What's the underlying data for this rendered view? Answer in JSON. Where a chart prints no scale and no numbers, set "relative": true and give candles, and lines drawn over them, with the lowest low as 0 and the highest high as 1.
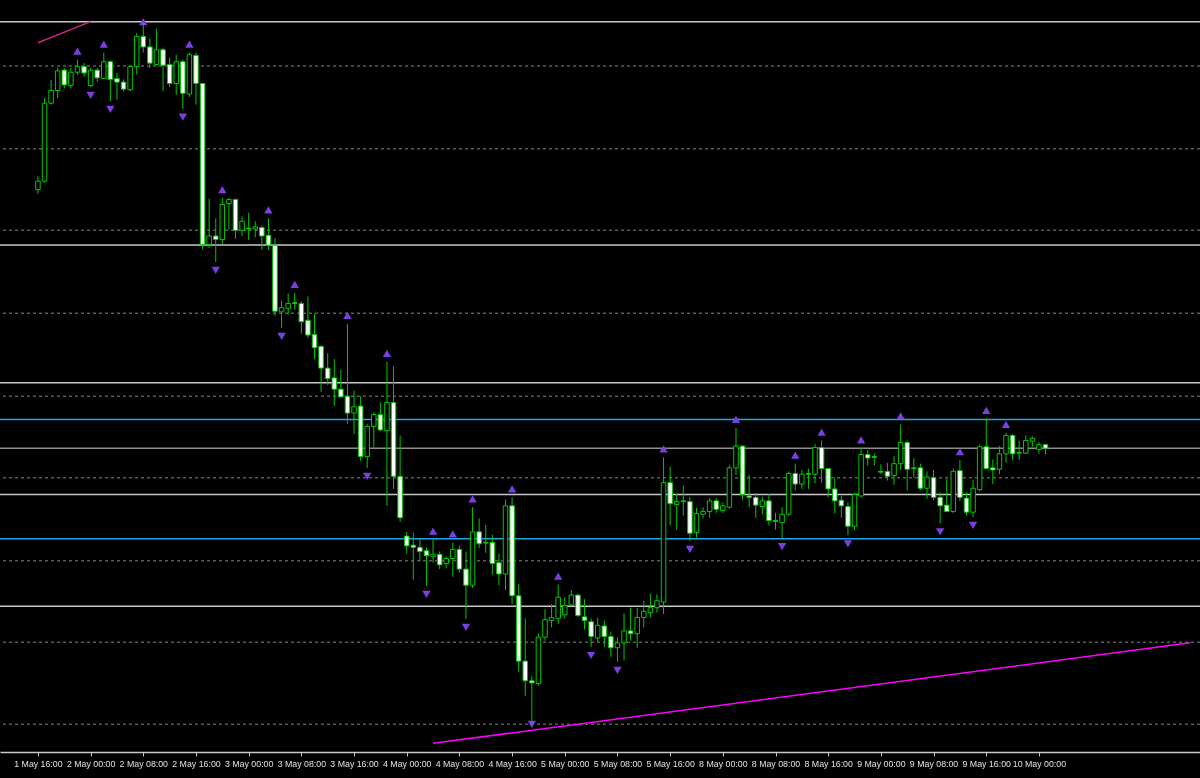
{
  "chart_data": {
    "type": "candlestick",
    "relative": true,
    "color": "#00c800",
    "categories": [
      "1 May 16:00",
      null,
      null,
      null,
      null,
      null,
      null,
      null,
      "2 May 00:00",
      null,
      null,
      null,
      null,
      null,
      null,
      null,
      "2 May 08:00",
      null,
      null,
      null,
      null,
      null,
      null,
      null,
      "2 May 16:00",
      null,
      null,
      null,
      null,
      null,
      null,
      null,
      "3 May 00:00",
      null,
      null,
      null,
      null,
      null,
      null,
      null,
      "3 May 08:00",
      null,
      null,
      null,
      null,
      null,
      null,
      null,
      "3 May 16:00",
      null,
      null,
      null,
      null,
      null,
      null,
      null,
      "4 May 00:00",
      null,
      null,
      null,
      null,
      null,
      null,
      null,
      "4 May 08:00",
      null,
      null,
      null,
      null,
      null,
      null,
      null,
      "4 May 16:00",
      null,
      null,
      null,
      null,
      null,
      null,
      null,
      "5 May 00:00",
      null,
      null,
      null,
      null,
      null,
      null,
      null,
      "5 May 08:00",
      null,
      null,
      null,
      null,
      null,
      null,
      null,
      "5 May 16:00",
      null,
      null,
      null,
      null,
      null,
      null,
      null,
      "8 May 00:00",
      null,
      null,
      null,
      null,
      null,
      null,
      null,
      "8 May 08:00",
      null,
      null,
      null,
      null,
      null,
      null,
      null,
      "8 May 16:00",
      null,
      null,
      null,
      null,
      null,
      null,
      null,
      "9 May 00:00",
      null,
      null,
      null,
      null,
      null,
      null,
      null,
      "9 May 08:00",
      null,
      null,
      null,
      null,
      null,
      null,
      null,
      "9 May 16:00",
      null,
      null,
      null,
      null,
      null,
      null,
      null,
      "10 May 00:00",
      null,
      null,
      null,
      null,
      null,
      null,
      null,
      null,
      null,
      null,
      null,
      null,
      null,
      null,
      null,
      null,
      null,
      null,
      null,
      null,
      null,
      null,
      null
    ],
    "ohlc": [
      [
        0.761,
        0.78,
        0.755,
        0.773
      ],
      [
        0.773,
        0.891,
        0.771,
        0.884
      ],
      [
        0.884,
        0.917,
        0.882,
        0.902
      ],
      [
        0.902,
        0.934,
        0.891,
        0.93
      ],
      [
        0.931,
        0.934,
        0.905,
        0.91
      ],
      [
        0.909,
        0.934,
        0.905,
        0.928
      ],
      [
        0.928,
        0.946,
        0.924,
        0.936
      ],
      [
        0.936,
        0.941,
        0.922,
        0.927
      ],
      [
        0.909,
        0.934,
        0.907,
        0.931
      ],
      [
        0.931,
        0.934,
        0.914,
        0.92
      ],
      [
        0.919,
        0.956,
        0.918,
        0.943
      ],
      [
        0.943,
        0.945,
        0.887,
        0.918
      ],
      [
        0.919,
        0.927,
        0.889,
        0.914
      ],
      [
        0.914,
        0.918,
        0.901,
        0.904
      ],
      [
        0.903,
        0.938,
        0.901,
        0.936
      ],
      [
        0.936,
        0.984,
        0.925,
        0.979
      ],
      [
        0.979,
        1,
        0.956,
        0.964
      ],
      [
        0.964,
        0.976,
        0.934,
        0.941
      ],
      [
        0.939,
        0.99,
        0.938,
        0.96
      ],
      [
        0.96,
        0.963,
        0.901,
        0.938
      ],
      [
        0.939,
        0.949,
        0.907,
        0.912
      ],
      [
        0.912,
        0.953,
        0.896,
        0.943
      ],
      [
        0.943,
        0.946,
        0.876,
        0.898
      ],
      [
        0.897,
        0.956,
        0.893,
        0.953
      ],
      [
        0.952,
        0.956,
        0.882,
        0.912
      ],
      [
        0.912,
        0.912,
        0.676,
        0.683
      ],
      [
        0.683,
        0.748,
        0.678,
        0.695
      ],
      [
        0.695,
        0.72,
        0.658,
        0.69
      ],
      [
        0.69,
        0.749,
        0.683,
        0.74
      ],
      [
        0.741,
        0.749,
        0.704,
        0.747
      ],
      [
        0.747,
        0.748,
        0.691,
        0.703
      ],
      [
        0.703,
        0.723,
        0.695,
        0.716
      ],
      [
        0.706,
        0.728,
        0.689,
        0.705
      ],
      [
        0.705,
        0.716,
        0.693,
        0.708
      ],
      [
        0.707,
        0.71,
        0.675,
        0.695
      ],
      [
        0.696,
        0.72,
        0.675,
        0.682
      ],
      [
        0.682,
        0.692,
        0.581,
        0.588
      ],
      [
        0.587,
        0.603,
        0.564,
        0.593
      ],
      [
        0.592,
        0.613,
        0.583,
        0.599
      ],
      [
        0.6,
        0.614,
        0.59,
        0.599
      ],
      [
        0.599,
        0.602,
        0.556,
        0.573
      ],
      [
        0.575,
        0.609,
        0.55,
        0.554
      ],
      [
        0.555,
        0.584,
        0.52,
        0.536
      ],
      [
        0.538,
        0.539,
        0.473,
        0.507
      ],
      [
        0.507,
        0.528,
        0.483,
        0.492
      ],
      [
        0.493,
        0.52,
        0.453,
        0.477
      ],
      [
        0.477,
        0.505,
        0.465,
        0.466
      ],
      [
        0.467,
        0.57,
        0.428,
        0.443
      ],
      [
        0.443,
        0.475,
        0.413,
        0.452
      ],
      [
        0.453,
        0.467,
        0.375,
        0.381
      ],
      [
        0.381,
        0.427,
        0.365,
        0.424
      ],
      [
        0.424,
        0.444,
        0.394,
        0.441
      ],
      [
        0.441,
        0.458,
        0.417,
        0.419
      ],
      [
        0.418,
        0.516,
        0.311,
        0.458
      ],
      [
        0.458,
        0.509,
        0.335,
        0.353
      ],
      [
        0.353,
        0.411,
        0.288,
        0.294
      ],
      [
        0.268,
        0.274,
        0.243,
        0.254
      ],
      [
        0.255,
        0.273,
        0.206,
        0.252
      ],
      [
        0.252,
        0.263,
        0.232,
        0.246
      ],
      [
        0.247,
        0.252,
        0.197,
        0.24
      ],
      [
        0.239,
        0.263,
        0.23,
        0.242
      ],
      [
        0.242,
        0.246,
        0.221,
        0.227
      ],
      [
        0.229,
        0.239,
        0.222,
        0.236
      ],
      [
        0.236,
        0.259,
        0.21,
        0.249
      ],
      [
        0.249,
        0.254,
        0.216,
        0.221
      ],
      [
        0.221,
        0.246,
        0.15,
        0.198
      ],
      [
        0.198,
        0.309,
        0.194,
        0.274
      ],
      [
        0.274,
        0.293,
        0.251,
        0.257
      ],
      [
        0.259,
        0.284,
        0.244,
        0.258
      ],
      [
        0.259,
        0.27,
        0.213,
        0.229
      ],
      [
        0.23,
        0.243,
        0.198,
        0.214
      ],
      [
        0.214,
        0.32,
        0.191,
        0.311
      ],
      [
        0.311,
        0.323,
        0.171,
        0.183
      ],
      [
        0.183,
        0.2,
        0.074,
        0.09
      ],
      [
        0.09,
        0.151,
        0.04,
        0.062
      ],
      [
        0.062,
        0.069,
        0,
        0.059
      ],
      [
        0.058,
        0.129,
        0.055,
        0.124
      ],
      [
        0.124,
        0.164,
        0.119,
        0.149
      ],
      [
        0.148,
        0.171,
        0.138,
        0.152
      ],
      [
        0.151,
        0.199,
        0.143,
        0.181
      ],
      [
        0.156,
        0.181,
        0.151,
        0.169
      ],
      [
        0.17,
        0.191,
        0.169,
        0.184
      ],
      [
        0.184,
        0.185,
        0.153,
        0.155
      ],
      [
        0.153,
        0.178,
        0.135,
        0.148
      ],
      [
        0.146,
        0.151,
        0.11,
        0.125
      ],
      [
        0.123,
        0.152,
        0.117,
        0.141
      ],
      [
        0.14,
        0.148,
        0.11,
        0.125
      ],
      [
        0.125,
        0.132,
        0.096,
        0.109
      ],
      [
        0.109,
        0.124,
        0.089,
        0.116
      ],
      [
        0.116,
        0.158,
        0.091,
        0.133
      ],
      [
        0.133,
        0.166,
        0.119,
        0.129
      ],
      [
        0.129,
        0.166,
        0.109,
        0.152
      ],
      [
        0.152,
        0.176,
        0.138,
        0.161
      ],
      [
        0.159,
        0.186,
        0.152,
        0.166
      ],
      [
        0.166,
        0.185,
        0.159,
        0.176
      ],
      [
        0.174,
        0.38,
        0.157,
        0.344
      ],
      [
        0.344,
        0.367,
        0.283,
        0.314
      ],
      [
        0.313,
        0.328,
        0.277,
        0.317
      ],
      [
        0.318,
        0.34,
        0.297,
        0.317
      ],
      [
        0.317,
        0.324,
        0.261,
        0.272
      ],
      [
        0.273,
        0.308,
        0.266,
        0.3
      ],
      [
        0.299,
        0.309,
        0.293,
        0.303
      ],
      [
        0.303,
        0.322,
        0.294,
        0.318
      ],
      [
        0.318,
        0.322,
        0.301,
        0.306
      ],
      [
        0.304,
        0.316,
        0.301,
        0.311
      ],
      [
        0.309,
        0.369,
        0.307,
        0.365
      ],
      [
        0.365,
        0.422,
        0.355,
        0.396
      ],
      [
        0.396,
        0.397,
        0.319,
        0.327
      ],
      [
        0.325,
        0.355,
        0.309,
        0.323
      ],
      [
        0.323,
        0.329,
        0.294,
        0.312
      ],
      [
        0.31,
        0.324,
        0.299,
        0.318
      ],
      [
        0.318,
        0.328,
        0.283,
        0.29
      ],
      [
        0.29,
        0.301,
        0.277,
        0.289
      ],
      [
        0.287,
        0.309,
        0.265,
        0.299
      ],
      [
        0.299,
        0.36,
        0.297,
        0.357
      ],
      [
        0.357,
        0.371,
        0.333,
        0.342
      ],
      [
        0.342,
        0.362,
        0.335,
        0.356
      ],
      [
        0.357,
        0.364,
        0.335,
        0.356
      ],
      [
        0.356,
        0.399,
        0.343,
        0.394
      ],
      [
        0.394,
        0.404,
        0.344,
        0.364
      ],
      [
        0.364,
        0.365,
        0.323,
        0.335
      ],
      [
        0.335,
        0.351,
        0.3,
        0.318
      ],
      [
        0.319,
        0.325,
        0.294,
        0.311
      ],
      [
        0.31,
        0.316,
        0.269,
        0.282
      ],
      [
        0.282,
        0.329,
        0.276,
        0.327
      ],
      [
        0.325,
        0.393,
        0.323,
        0.384
      ],
      [
        0.384,
        0.39,
        0.368,
        0.379
      ],
      [
        0.381,
        0.385,
        0.368,
        0.38
      ],
      [
        0.36,
        0.37,
        0.356,
        0.359
      ],
      [
        0.36,
        0.372,
        0.347,
        0.353
      ],
      [
        0.354,
        0.382,
        0.341,
        0.371
      ],
      [
        0.371,
        0.427,
        0.362,
        0.401
      ],
      [
        0.401,
        0.404,
        0.333,
        0.363
      ],
      [
        0.365,
        0.379,
        0.351,
        0.364
      ],
      [
        0.365,
        0.371,
        0.333,
        0.336
      ],
      [
        0.336,
        0.36,
        0.321,
        0.352
      ],
      [
        0.351,
        0.362,
        0.319,
        0.323
      ],
      [
        0.323,
        0.33,
        0.286,
        0.311
      ],
      [
        0.312,
        0.349,
        0.302,
        0.303
      ],
      [
        0.303,
        0.364,
        0.301,
        0.36
      ],
      [
        0.361,
        0.376,
        0.318,
        0.323
      ],
      [
        0.322,
        0.33,
        0.297,
        0.302
      ],
      [
        0.302,
        0.348,
        0.295,
        0.336
      ],
      [
        0.334,
        0.398,
        0.332,
        0.395
      ],
      [
        0.395,
        0.435,
        0.363,
        0.364
      ],
      [
        0.365,
        0.377,
        0.342,
        0.362
      ],
      [
        0.363,
        0.396,
        0.356,
        0.385
      ],
      [
        0.385,
        0.415,
        0.372,
        0.411
      ],
      [
        0.411,
        0.413,
        0.376,
        0.385
      ],
      [
        0.387,
        0.404,
        0.376,
        0.386
      ],
      [
        0.386,
        0.411,
        0.385,
        0.404
      ],
      [
        0.403,
        0.41,
        0.395,
        0.407
      ],
      [
        0.391,
        0.402,
        0.385,
        0.398
      ],
      [
        0.398,
        0.399,
        0.384,
        0.393
      ],
      null,
      null,
      null,
      null,
      null,
      null,
      null,
      null,
      null,
      null,
      null,
      null,
      null,
      null,
      null,
      null,
      null,
      null,
      null,
      null,
      null,
      null
    ],
    "series": [
      {
        "type": "scatter",
        "marker": "triangle",
        "color": "#7b3fe0",
        "values": [
          null,
          null,
          null,
          null,
          null,
          null,
          0.958,
          null,
          null,
          null,
          0.968,
          null,
          null,
          null,
          null,
          null,
          1,
          null,
          null,
          null,
          null,
          null,
          null,
          0.968,
          null,
          null,
          null,
          null,
          0.761,
          null,
          null,
          null,
          null,
          null,
          null,
          0.732,
          null,
          null,
          null,
          0.626,
          null,
          null,
          null,
          null,
          null,
          null,
          null,
          0.582,
          null,
          null,
          null,
          null,
          null,
          0.528,
          null,
          null,
          null,
          null,
          null,
          null,
          0.275,
          null,
          null,
          0.271,
          null,
          null,
          0.321,
          null,
          null,
          null,
          null,
          null,
          0.335,
          null,
          null,
          null,
          null,
          null,
          null,
          0.211,
          null,
          null,
          null,
          null,
          null,
          null,
          null,
          null,
          null,
          null,
          null,
          null,
          null,
          null,
          null,
          0.392,
          null,
          null,
          null,
          null,
          null,
          null,
          null,
          null,
          null,
          null,
          0.434,
          null,
          null,
          null,
          null,
          null,
          null,
          null,
          null,
          0.383,
          null,
          null,
          null,
          0.416,
          null,
          null,
          null,
          null,
          null,
          0.405,
          null,
          null,
          null,
          null,
          null,
          0.439,
          null,
          null,
          null,
          null,
          null,
          null,
          null,
          null,
          0.388,
          null,
          null,
          null,
          0.447,
          null,
          null,
          0.427,
          null,
          null,
          null,
          null,
          null,
          null,
          null,
          null,
          null,
          null,
          null,
          null,
          null,
          null,
          null,
          null,
          null,
          null,
          null,
          null,
          null,
          null,
          null,
          null,
          null,
          null,
          null,
          null
        ]
      },
      {
        "type": "scatter",
        "marker": "triangle",
        "color": "#7b3fe0",
        "values": [
          null,
          null,
          null,
          null,
          null,
          null,
          null,
          null,
          0.895,
          null,
          null,
          0.875,
          null,
          null,
          null,
          null,
          null,
          null,
          null,
          null,
          null,
          null,
          0.864,
          null,
          null,
          null,
          null,
          0.646,
          null,
          null,
          null,
          null,
          null,
          null,
          null,
          null,
          null,
          0.552,
          null,
          null,
          null,
          null,
          null,
          null,
          null,
          null,
          null,
          null,
          null,
          null,
          0.353,
          null,
          null,
          null,
          null,
          null,
          null,
          null,
          null,
          0.185,
          null,
          null,
          null,
          null,
          null,
          0.138,
          null,
          null,
          null,
          null,
          null,
          null,
          null,
          null,
          null,
          0,
          null,
          null,
          null,
          null,
          null,
          null,
          null,
          null,
          0.098,
          null,
          null,
          null,
          0.077,
          null,
          null,
          null,
          null,
          null,
          null,
          null,
          null,
          null,
          null,
          0.249,
          null,
          null,
          null,
          null,
          null,
          null,
          null,
          null,
          null,
          null,
          null,
          null,
          null,
          0.253,
          null,
          null,
          null,
          null,
          null,
          null,
          null,
          null,
          null,
          0.257,
          null,
          null,
          null,
          null,
          null,
          null,
          null,
          null,
          null,
          null,
          null,
          null,
          null,
          0.274,
          null,
          null,
          null,
          null,
          0.283,
          null,
          null,
          null,
          null,
          null,
          null,
          null,
          null,
          null,
          null,
          null,
          null,
          null,
          null,
          null,
          null,
          null,
          null,
          null,
          null,
          null,
          null,
          null,
          null,
          null,
          null,
          null,
          null,
          null,
          null,
          null,
          null,
          null
        ]
      },
      {
        "type": "line",
        "color": "#ff00ff",
        "values": [
          null,
          null,
          null,
          null,
          null,
          null,
          null,
          null,
          null,
          null,
          null,
          null,
          null,
          null,
          null,
          null,
          null,
          null,
          null,
          null,
          null,
          null,
          null,
          null,
          null,
          null,
          null,
          null,
          null,
          null,
          null,
          null,
          null,
          null,
          null,
          null,
          null,
          null,
          null,
          null,
          null,
          null,
          null,
          null,
          null,
          null,
          null,
          null,
          null,
          null,
          null,
          null,
          null,
          null,
          null,
          null,
          null,
          null,
          null,
          null,
          -0.027,
          null,
          null,
          null,
          null,
          null,
          null,
          null,
          null,
          null,
          null,
          null,
          null,
          null,
          null,
          null,
          null,
          null,
          null,
          null,
          null,
          null,
          null,
          null,
          null,
          null,
          null,
          null,
          null,
          null,
          null,
          null,
          null,
          null,
          null,
          null,
          null,
          null,
          null,
          null,
          null,
          null,
          null,
          null,
          null,
          null,
          null,
          null,
          null,
          null,
          null,
          null,
          null,
          null,
          null,
          null,
          null,
          null,
          null,
          null,
          null,
          null,
          null,
          null,
          null,
          null,
          null,
          null,
          null,
          null,
          null,
          null,
          null,
          null,
          null,
          null,
          null,
          null,
          null,
          null,
          null,
          null,
          null,
          null,
          null,
          null,
          null,
          null,
          null,
          null,
          null,
          null,
          null,
          null,
          null,
          null,
          null,
          null,
          null,
          null,
          null,
          null,
          null,
          null,
          null,
          null,
          null,
          null,
          null,
          null,
          null,
          null,
          null,
          null,
          null,
          0.116
        ]
      },
      {
        "type": "line",
        "color": "#c8287f",
        "values": [
          0.97,
          null,
          null,
          null,
          null,
          null,
          null,
          null,
          1,
          null,
          null,
          null,
          null,
          null,
          null,
          null,
          null,
          null,
          null,
          null,
          null,
          null,
          null,
          null,
          null,
          null,
          null,
          null,
          null,
          null,
          null,
          null,
          null,
          null,
          null,
          null,
          null,
          null,
          null,
          null,
          null,
          null,
          null,
          null,
          null,
          null,
          null,
          null,
          null,
          null,
          null,
          null,
          null,
          null,
          null,
          null,
          null,
          null,
          null,
          null,
          null,
          null,
          null,
          null,
          null,
          null,
          null,
          null,
          null,
          null,
          null,
          null,
          null,
          null,
          null,
          null,
          null,
          null,
          null,
          null,
          null,
          null,
          null,
          null,
          null,
          null,
          null,
          null,
          null,
          null,
          null,
          null,
          null,
          null,
          null,
          null,
          null,
          null,
          null,
          null,
          null,
          null,
          null,
          null,
          null,
          null,
          null,
          null,
          null,
          null,
          null,
          null,
          null,
          null,
          null,
          null,
          null,
          null,
          null,
          null,
          null,
          null,
          null,
          null,
          null,
          null,
          null,
          null,
          null,
          null,
          null,
          null,
          null,
          null,
          null,
          null,
          null,
          null,
          null,
          null,
          null,
          null,
          null,
          null,
          null,
          null,
          null,
          null,
          null,
          null,
          null,
          null,
          null,
          null,
          null,
          null,
          null,
          null,
          null,
          null,
          null,
          null,
          null,
          null,
          null,
          null,
          null,
          null,
          null,
          null,
          null,
          null,
          null,
          null,
          null,
          null
        ]
      }
    ],
    "ref_lines": [
      {
        "axis": "y",
        "value": 1,
        "color": "#c8c8c8"
      },
      {
        "axis": "y",
        "value": 0.937,
        "color": "#5a5a5a",
        "line_style": "dashed"
      },
      {
        "axis": "y",
        "value": 0.819,
        "color": "#5a5a5a",
        "line_style": "dashed"
      },
      {
        "axis": "y",
        "value": 0.703,
        "color": "#5a5a5a",
        "line_style": "dashed"
      },
      {
        "axis": "y",
        "value": 0.682,
        "color": "#c8c8c8"
      },
      {
        "axis": "y",
        "value": 0.585,
        "color": "#5a5a5a",
        "line_style": "dashed"
      },
      {
        "axis": "y",
        "value": 0.486,
        "color": "#c8c8c8"
      },
      {
        "axis": "y",
        "value": 0.467,
        "color": "#5a5a5a",
        "line_style": "dashed"
      },
      {
        "axis": "y",
        "value": 0.434,
        "color": "#1ea8e6"
      },
      {
        "axis": "y",
        "value": 0.393,
        "color": "#8c8c8c"
      },
      {
        "axis": "y",
        "value": 0.351,
        "color": "#5a5a5a",
        "line_style": "dashed"
      },
      {
        "axis": "y",
        "value": 0.327,
        "color": "#c8c8c8"
      },
      {
        "axis": "y",
        "value": 0.264,
        "color": "#1ea8e6"
      },
      {
        "axis": "y",
        "value": 0.233,
        "color": "#5a5a5a",
        "line_style": "dashed"
      },
      {
        "axis": "y",
        "value": 0.168,
        "color": "#c8c8c8"
      },
      {
        "axis": "y",
        "value": 0.117,
        "color": "#5a5a5a",
        "line_style": "dashed"
      },
      {
        "axis": "y",
        "value": 0,
        "color": "#5a5a5a",
        "line_style": "dashed"
      }
    ]
  }
}
